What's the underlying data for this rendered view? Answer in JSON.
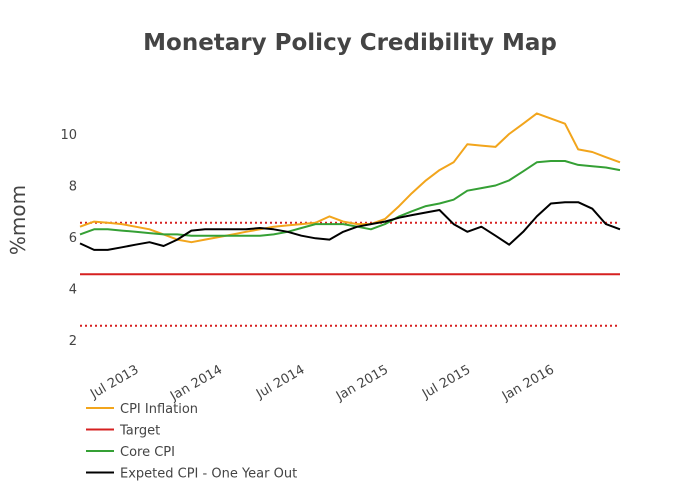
{
  "chart_data": {
    "type": "line",
    "title": "Monetary Policy Credibility Map",
    "xlabel": "",
    "ylabel": "%mom",
    "xlim": [
      "2013-03-01",
      "2016-06-01"
    ],
    "ylim": [
      2,
      13
    ],
    "yticks": [
      2,
      4,
      6,
      8,
      10
    ],
    "xticks": [
      {
        "date": "2013-07-01",
        "label": "Jul 2013"
      },
      {
        "date": "2014-01-01",
        "label": "Jan 2014"
      },
      {
        "date": "2014-07-01",
        "label": "Jul 2014"
      },
      {
        "date": "2015-01-01",
        "label": "Jan 2015"
      },
      {
        "date": "2015-07-01",
        "label": "Jul 2015"
      },
      {
        "date": "2016-01-01",
        "label": "Jan 2016"
      }
    ],
    "grid": false,
    "legend_position": "bottom-left",
    "x": [
      "2013-03-01",
      "2013-04-01",
      "2013-05-01",
      "2013-06-01",
      "2013-07-01",
      "2013-08-01",
      "2013-09-01",
      "2013-10-01",
      "2013-11-01",
      "2013-12-01",
      "2014-01-01",
      "2014-02-01",
      "2014-03-01",
      "2014-04-01",
      "2014-05-01",
      "2014-06-01",
      "2014-07-01",
      "2014-08-01",
      "2014-09-01",
      "2014-10-01",
      "2014-11-01",
      "2014-12-01",
      "2015-01-01",
      "2015-02-01",
      "2015-03-01",
      "2015-04-01",
      "2015-05-01",
      "2015-06-01",
      "2015-07-01",
      "2015-08-01",
      "2015-09-01",
      "2015-10-01",
      "2015-11-01",
      "2015-12-01",
      "2016-01-01",
      "2016-02-01",
      "2016-03-01",
      "2016-04-01",
      "2016-05-01",
      "2016-06-01"
    ],
    "series": [
      {
        "name": "CPI Inflation",
        "color": "#f2a51c",
        "style": "solid",
        "values": [
          6.4,
          6.6,
          6.55,
          6.5,
          6.4,
          6.3,
          6.1,
          5.9,
          5.8,
          5.9,
          6.0,
          6.1,
          6.2,
          6.3,
          6.4,
          6.45,
          6.5,
          6.55,
          6.8,
          6.6,
          6.5,
          6.5,
          6.7,
          7.2,
          7.7,
          8.2,
          8.6,
          8.9,
          9.6,
          9.55,
          9.5,
          10.0,
          10.4,
          10.8,
          10.6,
          10.4,
          9.4,
          9.3,
          9.1,
          8.9
        ]
      },
      {
        "name": "Target",
        "color": "#d62020",
        "style": "solid",
        "values": [
          4.55,
          4.55,
          4.55,
          4.55,
          4.55,
          4.55,
          4.55,
          4.55,
          4.55,
          4.55,
          4.55,
          4.55,
          4.55,
          4.55,
          4.55,
          4.55,
          4.55,
          4.55,
          4.55,
          4.55,
          4.55,
          4.55,
          4.55,
          4.55,
          4.55,
          4.55,
          4.55,
          4.55,
          4.55,
          4.55,
          4.55,
          4.55,
          4.55,
          4.55,
          4.55,
          4.55,
          4.55,
          4.55,
          4.55,
          4.55
        ]
      },
      {
        "name": "Core CPI",
        "color": "#35a035",
        "style": "solid",
        "values": [
          6.1,
          6.3,
          6.3,
          6.25,
          6.2,
          6.15,
          6.1,
          6.1,
          6.05,
          6.05,
          6.05,
          6.05,
          6.05,
          6.05,
          6.1,
          6.2,
          6.35,
          6.5,
          6.5,
          6.5,
          6.4,
          6.3,
          6.5,
          6.8,
          7.0,
          7.2,
          7.3,
          7.45,
          7.8,
          7.9,
          8.0,
          8.2,
          8.55,
          8.9,
          8.95,
          8.95,
          8.8,
          8.75,
          8.7,
          8.6
        ]
      },
      {
        "name": "Expeted CPI - One Year Out",
        "color": "#000000",
        "style": "solid",
        "values": [
          5.75,
          5.5,
          5.5,
          5.6,
          5.7,
          5.8,
          5.65,
          5.9,
          6.25,
          6.3,
          6.3,
          6.3,
          6.3,
          6.35,
          6.3,
          6.2,
          6.05,
          5.95,
          5.9,
          6.2,
          6.4,
          6.5,
          6.6,
          6.75,
          6.85,
          6.95,
          7.05,
          6.5,
          6.2,
          6.4,
          6.05,
          5.7,
          6.2,
          6.8,
          7.3,
          7.35,
          7.35,
          7.1,
          6.5,
          6.3
        ]
      },
      {
        "name": "",
        "color": "#d62020",
        "style": "dotted",
        "values": [
          6.55,
          6.55,
          6.55,
          6.55,
          6.55,
          6.55,
          6.55,
          6.55,
          6.55,
          6.55,
          6.55,
          6.55,
          6.55,
          6.55,
          6.55,
          6.55,
          6.55,
          6.55,
          6.55,
          6.55,
          6.55,
          6.55,
          6.55,
          6.55,
          6.55,
          6.55,
          6.55,
          6.55,
          6.55,
          6.55,
          6.55,
          6.55,
          6.55,
          6.55,
          6.55,
          6.55,
          6.55,
          6.55,
          6.55,
          6.55
        ]
      },
      {
        "name": "",
        "color": "#d62020",
        "style": "dotted",
        "values": [
          2.55,
          2.55,
          2.55,
          2.55,
          2.55,
          2.55,
          2.55,
          2.55,
          2.55,
          2.55,
          2.55,
          2.55,
          2.55,
          2.55,
          2.55,
          2.55,
          2.55,
          2.55,
          2.55,
          2.55,
          2.55,
          2.55,
          2.55,
          2.55,
          2.55,
          2.55,
          2.55,
          2.55,
          2.55,
          2.55,
          2.55,
          2.55,
          2.55,
          2.55,
          2.55,
          2.55,
          2.55,
          2.55,
          2.55,
          2.55
        ]
      }
    ]
  }
}
